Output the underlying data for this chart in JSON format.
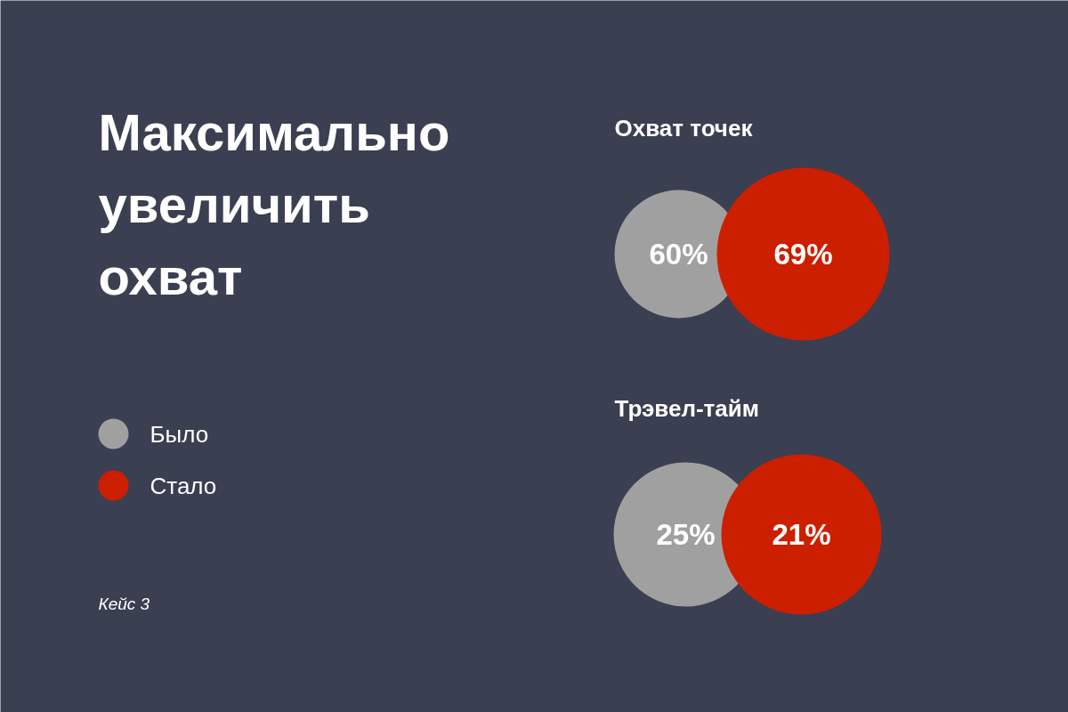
{
  "chart_data": [
    {
      "type": "other",
      "title": "Максимально увеличить охват",
      "legend": "left",
      "annotations": [
        "Кейс 3"
      ],
      "series": [
        {
          "name": "Было",
          "color": "#a0a0a0"
        },
        {
          "name": "Стало",
          "color": "#cc1f00"
        }
      ]
    },
    {
      "type": "other",
      "title": "Охват точек",
      "categories": [
        null,
        null
      ],
      "colors": [
        "#a0a0a0",
        "#cc1f00"
      ],
      "values": [
        60,
        69
      ],
      "value_labels": [
        "60%",
        "69%"
      ]
    },
    {
      "type": "other",
      "title": "Трэвел-тайм",
      "categories": [
        null,
        null
      ],
      "colors": [
        "#a0a0a0",
        "#cc1f00"
      ],
      "values": [
        25,
        21
      ],
      "value_labels": [
        "25%",
        "21%"
      ]
    }
  ]
}
